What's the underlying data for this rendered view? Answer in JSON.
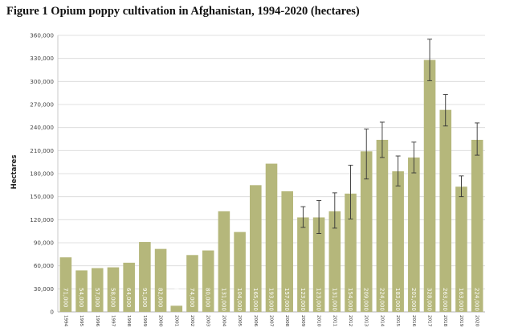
{
  "chart_data": {
    "type": "bar",
    "title": "Figure 1 Opium poppy cultivation in Afghanistan, 1994-2020 (hectares)",
    "xlabel": "",
    "ylabel": "Hectares",
    "ylim": [
      0,
      360000
    ],
    "y_ticks": [
      "0",
      "30,000",
      "60,000",
      "90,000",
      "120,000",
      "150,000",
      "180,000",
      "210,000",
      "240,000",
      "270,000",
      "300,000",
      "330,000",
      "360,000"
    ],
    "grid": true,
    "legend": "none",
    "bar_color": "#b5b77b",
    "categories": [
      "1994",
      "1995",
      "1996",
      "1997",
      "1998",
      "1999",
      "2000",
      "2001",
      "2002",
      "2003",
      "2004",
      "2005",
      "2006",
      "2007",
      "2008",
      "2009",
      "2010",
      "2011",
      "2012",
      "2013",
      "2014",
      "2015",
      "2016",
      "2017",
      "2018",
      "2019",
      "2020"
    ],
    "values": [
      71000,
      54000,
      57000,
      58000,
      64000,
      91000,
      82000,
      8000,
      74000,
      80000,
      131000,
      104000,
      165000,
      193000,
      157000,
      123000,
      123000,
      131000,
      154000,
      209000,
      224000,
      183000,
      201000,
      328000,
      263000,
      163000,
      224000
    ],
    "value_labels": [
      "71,000",
      "54,000",
      "57,000",
      "58,000",
      "64,000",
      "91,000",
      "82,000",
      "8,000",
      "74,000",
      "80,000",
      "131,000",
      "104,000",
      "165,000",
      "193,000",
      "157,000",
      "123,000",
      "123,000",
      "131,000",
      "154,000",
      "209,000",
      "224,000",
      "183,000",
      "201,000",
      "328,000",
      "263,000",
      "163,000",
      "224,000"
    ],
    "error_bars": [
      null,
      null,
      null,
      null,
      null,
      null,
      null,
      null,
      null,
      null,
      null,
      null,
      null,
      null,
      null,
      [
        110000,
        137000
      ],
      [
        102000,
        145000
      ],
      [
        109000,
        155000
      ],
      [
        121000,
        191000
      ],
      [
        173000,
        238000
      ],
      [
        201000,
        247000
      ],
      [
        164000,
        203000
      ],
      [
        181000,
        221000
      ],
      [
        301000,
        355000
      ],
      [
        242000,
        283000
      ],
      [
        150000,
        177000
      ],
      [
        204000,
        246000
      ]
    ]
  }
}
